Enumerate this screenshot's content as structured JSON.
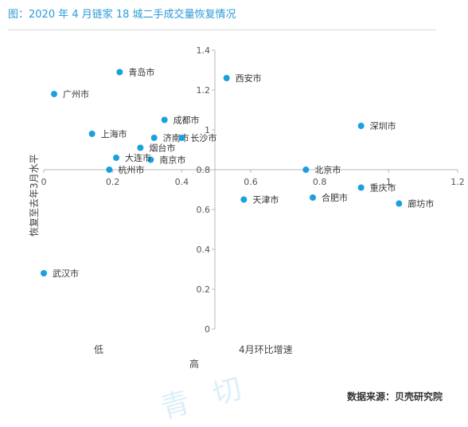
{
  "header": {
    "title": "图：2020 年 4 月链家 18 城二手成交量恢复情况"
  },
  "footer": {
    "source": "数据来源：贝壳研究院"
  },
  "colors": {
    "accent": "#2a9bd8",
    "point": "#1aa0e0",
    "axis": "#b8b8b8"
  },
  "chart_data": {
    "type": "scatter",
    "title": "图：2020 年 4 月链家 18 城二手成交量恢复情况",
    "xlabel": "4月环比增速",
    "ylabel": "恢复至去年3月水平",
    "x_low_label": "低",
    "x_high_label": "高",
    "xlim": [
      0,
      1.2
    ],
    "ylim": [
      0,
      1.4
    ],
    "x_ticks": [
      "0",
      "0.2",
      "0.4",
      "0.6",
      "0.8",
      "1",
      "1.2"
    ],
    "y_ticks": [
      "0",
      "0.2",
      "0.4",
      "0.6",
      "0.8",
      "1",
      "1.2",
      "1.4"
    ],
    "grid": false,
    "points": [
      {
        "label": "青岛市",
        "x": 0.22,
        "y": 1.29
      },
      {
        "label": "广州市",
        "x": 0.03,
        "y": 1.18
      },
      {
        "label": "西安市",
        "x": 0.53,
        "y": 1.26
      },
      {
        "label": "成都市",
        "x": 0.35,
        "y": 1.05
      },
      {
        "label": "上海市",
        "x": 0.14,
        "y": 0.98
      },
      {
        "label": "济南市",
        "x": 0.32,
        "y": 0.96
      },
      {
        "label": "长沙市",
        "x": 0.4,
        "y": 0.96
      },
      {
        "label": "烟台市",
        "x": 0.28,
        "y": 0.91
      },
      {
        "label": "南京市",
        "x": 0.31,
        "y": 0.85
      },
      {
        "label": "大连市",
        "x": 0.21,
        "y": 0.86
      },
      {
        "label": "杭州市",
        "x": 0.19,
        "y": 0.8
      },
      {
        "label": "深圳市",
        "x": 0.92,
        "y": 1.02
      },
      {
        "label": "北京市",
        "x": 0.76,
        "y": 0.8
      },
      {
        "label": "重庆市",
        "x": 0.92,
        "y": 0.71
      },
      {
        "label": "合肥市",
        "x": 0.78,
        "y": 0.66
      },
      {
        "label": "天津市",
        "x": 0.58,
        "y": 0.65
      },
      {
        "label": "廊坊市",
        "x": 1.03,
        "y": 0.63
      },
      {
        "label": "武汉市",
        "x": 0.0,
        "y": 0.28
      }
    ]
  }
}
